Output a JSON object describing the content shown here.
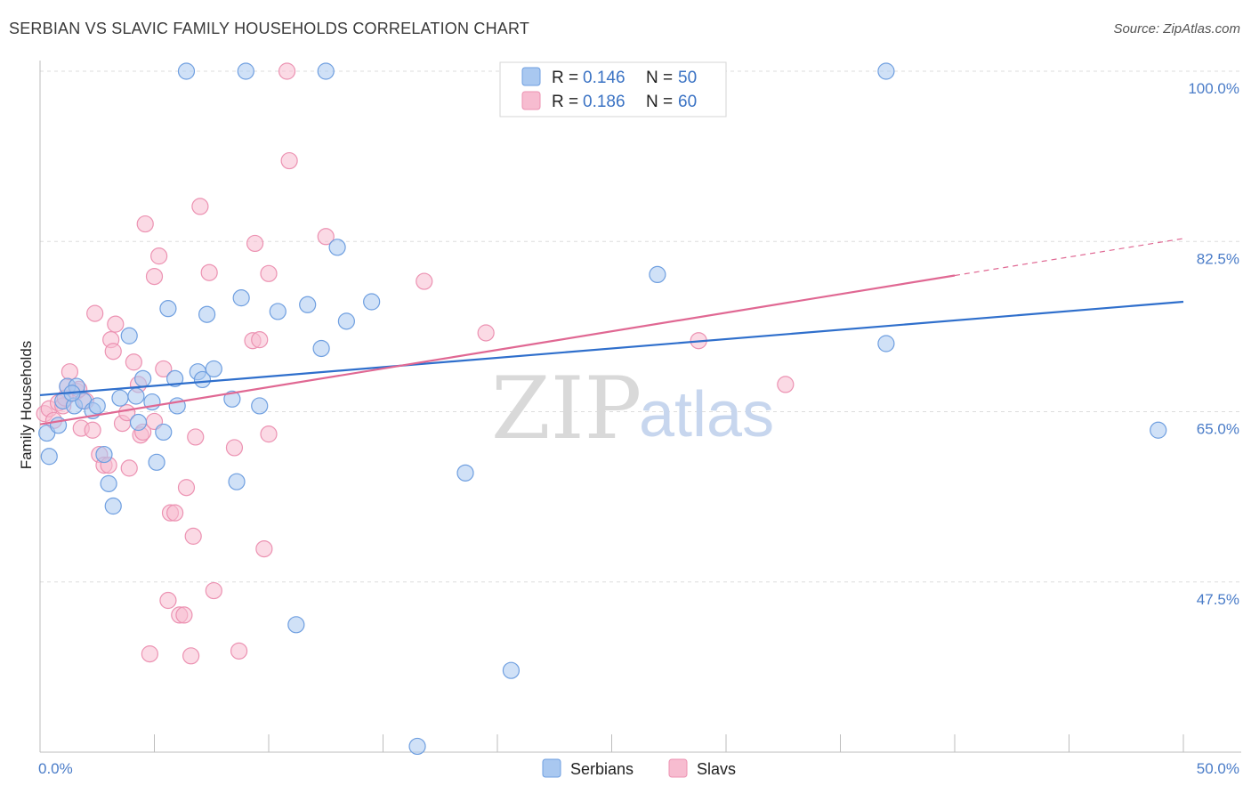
{
  "title": "SERBIAN VS SLAVIC FAMILY HOUSEHOLDS CORRELATION CHART",
  "source": "Source: ZipAtlas.com",
  "watermark": {
    "zip": "ZIP",
    "atlas": "atlas"
  },
  "colors": {
    "serbians_fill": "#a9c8f0",
    "serbians_stroke": "#6f9fe0",
    "serbians_line": "#2f6fcc",
    "slavs_fill": "#f7bcd0",
    "slavs_stroke": "#ec92b2",
    "slavs_line": "#e06893",
    "grid": "#dddddd",
    "tick_label": "#4a7cc8"
  },
  "legend": {
    "serbians": {
      "r_label": "R = ",
      "r_value": "0.146",
      "n_label": "N = ",
      "n_value": "50"
    },
    "slavs": {
      "r_label": "R = ",
      "r_value": "0.186",
      "n_label": "N = ",
      "n_value": "60"
    }
  },
  "chart_data": {
    "type": "scatter",
    "title": "SERBIAN VS SLAVIC FAMILY HOUSEHOLDS CORRELATION CHART",
    "xlabel": "",
    "ylabel": "Family Households",
    "xlim": [
      0,
      50
    ],
    "ylim": [
      30,
      100
    ],
    "x_tick_labels": [
      "0.0%",
      "50.0%"
    ],
    "y_ticks": [
      47.5,
      65.0,
      82.5,
      100.0
    ],
    "y_tick_labels": [
      "47.5%",
      "65.0%",
      "82.5%",
      "100.0%"
    ],
    "grid": true,
    "legend_position": "top-center",
    "series": [
      {
        "name": "Serbians",
        "trend": {
          "x": [
            0,
            50
          ],
          "y": [
            66.7,
            76.3
          ]
        },
        "points": [
          [
            0.3,
            62.8
          ],
          [
            0.4,
            60.4
          ],
          [
            0.8,
            63.6
          ],
          [
            1.0,
            66.1
          ],
          [
            1.2,
            67.6
          ],
          [
            1.5,
            65.6
          ],
          [
            1.6,
            67.6
          ],
          [
            1.9,
            66.1
          ],
          [
            2.3,
            65.1
          ],
          [
            2.5,
            65.6
          ],
          [
            2.8,
            60.6
          ],
          [
            3.0,
            57.6
          ],
          [
            3.2,
            55.3
          ],
          [
            3.5,
            66.4
          ],
          [
            3.9,
            72.8
          ],
          [
            4.2,
            66.6
          ],
          [
            4.3,
            63.9
          ],
          [
            4.5,
            68.4
          ],
          [
            4.9,
            66.0
          ],
          [
            5.1,
            59.8
          ],
          [
            5.4,
            62.9
          ],
          [
            5.6,
            75.6
          ],
          [
            5.9,
            68.4
          ],
          [
            6.0,
            65.6
          ],
          [
            6.4,
            100.0
          ],
          [
            6.9,
            69.1
          ],
          [
            7.1,
            68.3
          ],
          [
            7.3,
            75.0
          ],
          [
            7.6,
            69.4
          ],
          [
            8.4,
            66.3
          ],
          [
            8.6,
            57.8
          ],
          [
            8.8,
            76.7
          ],
          [
            9.0,
            100.0
          ],
          [
            9.6,
            65.6
          ],
          [
            10.4,
            75.3
          ],
          [
            11.2,
            43.1
          ],
          [
            11.7,
            76.0
          ],
          [
            12.3,
            71.5
          ],
          [
            12.5,
            100.0
          ],
          [
            13.0,
            81.9
          ],
          [
            13.4,
            74.3
          ],
          [
            14.5,
            76.3
          ],
          [
            16.5,
            30.6
          ],
          [
            18.6,
            58.7
          ],
          [
            20.6,
            38.4
          ],
          [
            27.0,
            79.1
          ],
          [
            37.0,
            100.0
          ],
          [
            37.0,
            72.0
          ],
          [
            48.9,
            63.1
          ],
          [
            1.4,
            66.9
          ]
        ]
      },
      {
        "name": "Slavs",
        "trend": {
          "x": [
            0,
            40
          ],
          "y": [
            63.7,
            79.0
          ]
        },
        "trend_extension": {
          "x": [
            40,
            50
          ],
          "y": [
            79.0,
            82.8
          ]
        },
        "points": [
          [
            0.2,
            64.8
          ],
          [
            0.4,
            65.3
          ],
          [
            0.6,
            64.1
          ],
          [
            0.8,
            65.9
          ],
          [
            1.0,
            65.6
          ],
          [
            1.2,
            67.6
          ],
          [
            1.3,
            69.1
          ],
          [
            1.6,
            67.1
          ],
          [
            1.8,
            63.3
          ],
          [
            2.0,
            66.1
          ],
          [
            2.3,
            63.1
          ],
          [
            2.4,
            75.1
          ],
          [
            2.6,
            60.6
          ],
          [
            2.8,
            59.5
          ],
          [
            3.0,
            59.5
          ],
          [
            3.1,
            72.4
          ],
          [
            3.2,
            71.2
          ],
          [
            3.3,
            74.0
          ],
          [
            3.6,
            63.8
          ],
          [
            3.8,
            64.9
          ],
          [
            3.9,
            59.2
          ],
          [
            4.1,
            70.1
          ],
          [
            4.3,
            67.8
          ],
          [
            4.4,
            62.6
          ],
          [
            4.5,
            62.9
          ],
          [
            4.6,
            84.3
          ],
          [
            4.8,
            40.1
          ],
          [
            5.0,
            64.0
          ],
          [
            5.0,
            78.9
          ],
          [
            5.2,
            81.0
          ],
          [
            5.4,
            69.4
          ],
          [
            5.6,
            45.6
          ],
          [
            5.7,
            54.6
          ],
          [
            5.9,
            54.6
          ],
          [
            6.1,
            44.1
          ],
          [
            6.3,
            44.1
          ],
          [
            6.4,
            57.2
          ],
          [
            6.6,
            39.9
          ],
          [
            6.7,
            52.2
          ],
          [
            6.8,
            62.4
          ],
          [
            7.0,
            86.1
          ],
          [
            7.4,
            79.3
          ],
          [
            7.6,
            46.6
          ],
          [
            8.5,
            61.3
          ],
          [
            8.7,
            40.4
          ],
          [
            9.3,
            72.3
          ],
          [
            9.4,
            82.3
          ],
          [
            9.6,
            72.4
          ],
          [
            9.8,
            50.9
          ],
          [
            10.0,
            79.2
          ],
          [
            10.0,
            62.7
          ],
          [
            10.8,
            100.0
          ],
          [
            10.9,
            90.8
          ],
          [
            12.5,
            83.0
          ],
          [
            16.8,
            78.4
          ],
          [
            19.5,
            73.1
          ],
          [
            28.8,
            72.3
          ],
          [
            32.6,
            67.8
          ],
          [
            1.7,
            67.3
          ],
          [
            1.1,
            66.4
          ]
        ]
      }
    ]
  },
  "bottom_legend": [
    "Serbians",
    "Slavs"
  ]
}
